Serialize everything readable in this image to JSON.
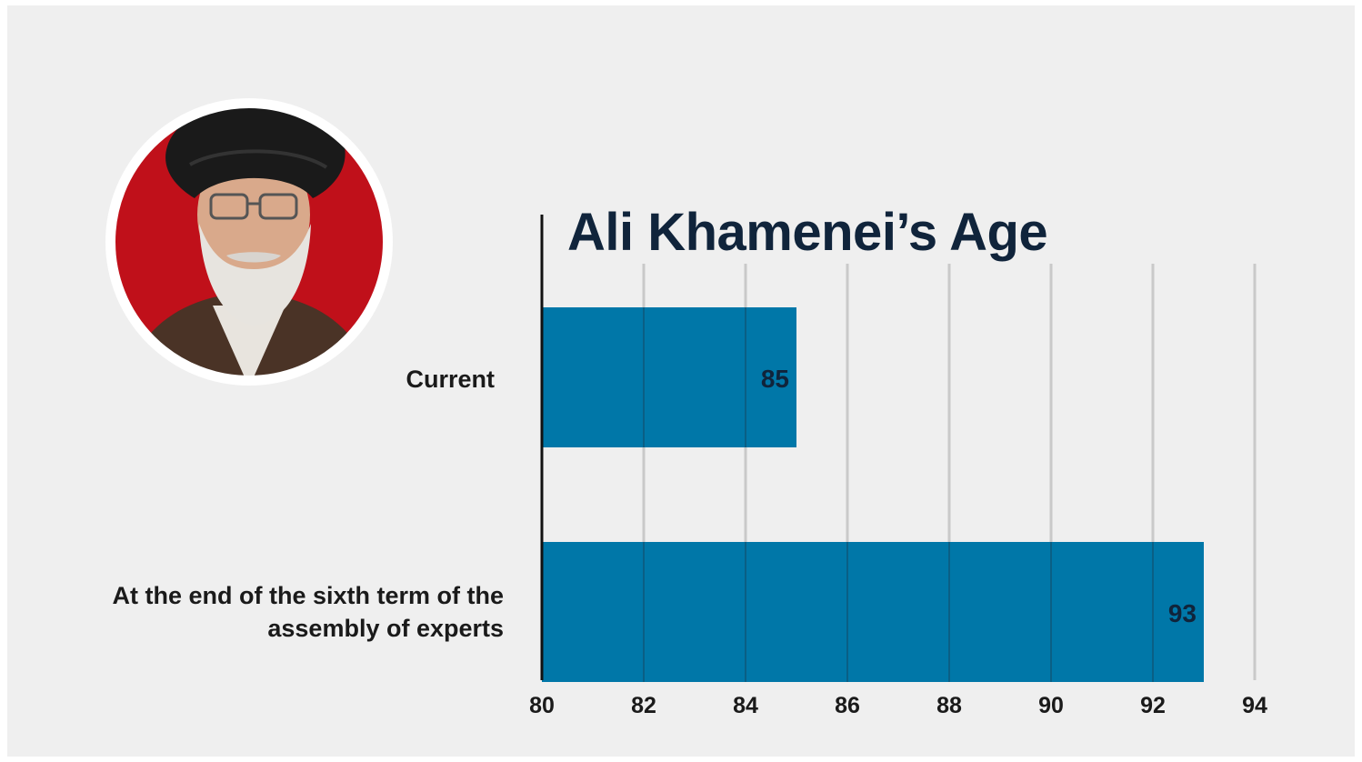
{
  "chart_data": {
    "type": "bar",
    "orientation": "horizontal",
    "title": "Ali Khamenei’s Age",
    "categories": [
      "Current",
      "At the end of the sixth term of the assembly of experts"
    ],
    "values": [
      85,
      93
    ],
    "data_labels": [
      "85",
      "93"
    ],
    "xlim": [
      80,
      94
    ],
    "ticks": [
      80,
      82,
      84,
      86,
      88,
      90,
      92,
      94
    ],
    "tick_labels": [
      "80",
      "82",
      "84",
      "86",
      "88",
      "90",
      "92",
      "94"
    ],
    "xlabel": "",
    "ylabel": "",
    "grid": true,
    "bar_color": "#0077a8"
  },
  "colors": {
    "background": "#efefef",
    "title": "#10243b",
    "portrait_ring": "#c0101a",
    "bar": "#0077a8"
  },
  "icons": {
    "portrait": "portrait-photo-icon"
  }
}
